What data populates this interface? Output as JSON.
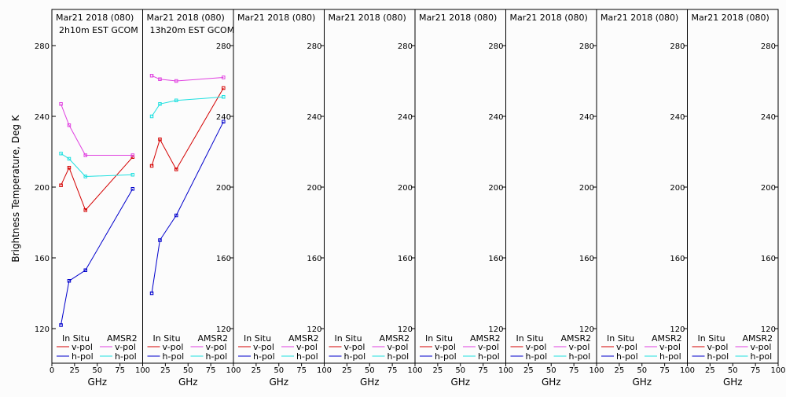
{
  "figure": {
    "ylabel": "Brightness Temperature, Deg K",
    "xlabel": "GHz",
    "legend": {
      "in_situ_label": "In Situ",
      "amsr2_label": "AMSR2",
      "vpol_label": "v-pol",
      "hpol_label": "h-pol"
    },
    "colors": {
      "insitu_v": "#d40000",
      "insitu_h": "#0000cc",
      "amsr2_v": "#e040e0",
      "amsr2_h": "#20e0e0",
      "axes": "#000000"
    }
  },
  "chart_data": [
    {
      "type": "line",
      "title": "Mar21 2018 (080)",
      "subtitle": "2h10m EST GCOM",
      "xlim": [
        0,
        100
      ],
      "ylim": [
        112,
        296
      ],
      "x_ticks": [
        "0",
        "25",
        "50",
        "75",
        "100"
      ],
      "y_ticks": [
        "120",
        "160",
        "200",
        "240",
        "280"
      ],
      "y_tick_side": "left",
      "series": [
        {
          "key": "insitu_v",
          "x": [
            10,
            19,
            37,
            89
          ],
          "y": [
            201,
            211,
            187,
            217
          ]
        },
        {
          "key": "insitu_h",
          "x": [
            10,
            19,
            37,
            89
          ],
          "y": [
            122,
            147,
            153,
            199
          ]
        },
        {
          "key": "amsr2_v",
          "x": [
            10,
            19,
            37,
            89
          ],
          "y": [
            247,
            235,
            218,
            218
          ]
        },
        {
          "key": "amsr2_h",
          "x": [
            10,
            19,
            37,
            89
          ],
          "y": [
            219,
            216,
            206,
            207
          ]
        }
      ]
    },
    {
      "type": "line",
      "title": "Mar21 2018 (080)",
      "subtitle": "13h20m EST GCOM",
      "xlim": [
        0,
        100
      ],
      "ylim": [
        112,
        296
      ],
      "x_ticks": [
        "",
        "25",
        "50",
        "75",
        "100"
      ],
      "y_ticks": [
        "120",
        "160",
        "200",
        "240",
        "280"
      ],
      "y_tick_side": "right",
      "series": [
        {
          "key": "insitu_v",
          "x": [
            10,
            19,
            37,
            89
          ],
          "y": [
            212,
            227,
            210,
            256
          ]
        },
        {
          "key": "insitu_h",
          "x": [
            10,
            19,
            37,
            89
          ],
          "y": [
            140,
            170,
            184,
            237
          ]
        },
        {
          "key": "amsr2_v",
          "x": [
            10,
            19,
            37,
            89
          ],
          "y": [
            263,
            261,
            260,
            262
          ]
        },
        {
          "key": "amsr2_h",
          "x": [
            10,
            19,
            37,
            89
          ],
          "y": [
            240,
            247,
            249,
            251
          ]
        }
      ]
    },
    {
      "type": "line",
      "title": "Mar21 2018 (080)",
      "subtitle": "",
      "xlim": [
        0,
        100
      ],
      "ylim": [
        112,
        296
      ],
      "x_ticks": [
        "",
        "25",
        "50",
        "75",
        "100"
      ],
      "y_ticks": [
        "120",
        "160",
        "200",
        "240",
        "280"
      ],
      "y_tick_side": "right",
      "series": []
    },
    {
      "type": "line",
      "title": "Mar21 2018 (080)",
      "subtitle": "",
      "xlim": [
        0,
        100
      ],
      "ylim": [
        112,
        296
      ],
      "x_ticks": [
        "",
        "25",
        "50",
        "75",
        "100"
      ],
      "y_ticks": [
        "120",
        "160",
        "200",
        "240",
        "280"
      ],
      "y_tick_side": "right",
      "series": []
    },
    {
      "type": "line",
      "title": "Mar21 2018 (080)",
      "subtitle": "",
      "xlim": [
        0,
        100
      ],
      "ylim": [
        112,
        296
      ],
      "x_ticks": [
        "",
        "25",
        "50",
        "75",
        "100"
      ],
      "y_ticks": [
        "120",
        "160",
        "200",
        "240",
        "280"
      ],
      "y_tick_side": "right",
      "series": []
    },
    {
      "type": "line",
      "title": "Mar21 2018 (080)",
      "subtitle": "",
      "xlim": [
        0,
        100
      ],
      "ylim": [
        112,
        296
      ],
      "x_ticks": [
        "",
        "25",
        "50",
        "75",
        "100"
      ],
      "y_ticks": [
        "120",
        "160",
        "200",
        "240",
        "280"
      ],
      "y_tick_side": "right",
      "series": []
    },
    {
      "type": "line",
      "title": "Mar21 2018 (080)",
      "subtitle": "",
      "xlim": [
        0,
        100
      ],
      "ylim": [
        112,
        296
      ],
      "x_ticks": [
        "",
        "25",
        "50",
        "75",
        "100"
      ],
      "y_ticks": [
        "120",
        "160",
        "200",
        "240",
        "280"
      ],
      "y_tick_side": "right",
      "series": []
    },
    {
      "type": "line",
      "title": "Mar21 2018 (080)",
      "subtitle": "",
      "xlim": [
        0,
        100
      ],
      "ylim": [
        112,
        296
      ],
      "x_ticks": [
        "",
        "25",
        "50",
        "75",
        "100"
      ],
      "y_ticks": [
        "120",
        "160",
        "200",
        "240",
        "280"
      ],
      "y_tick_side": "right",
      "series": []
    }
  ]
}
